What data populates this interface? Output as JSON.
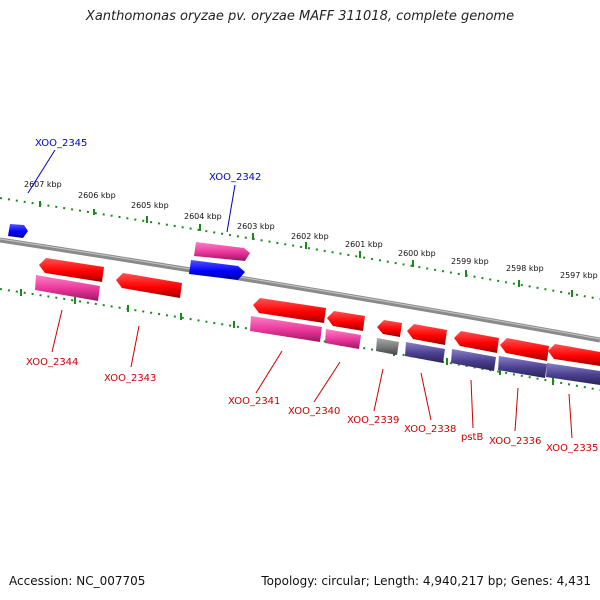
{
  "title": "Xanthomonas oryzae pv. oryzae MAFF 311018, complete genome",
  "footer": {
    "accession": "Accession: NC_007705",
    "summary": "Topology: circular; Length: 4,940,217 bp; Genes: 4,431"
  },
  "scale_labels": [
    "2607 kbp",
    "2606 kbp",
    "2605 kbp",
    "2604 kbp",
    "2603 kbp",
    "2602 kbp",
    "2601 kbp",
    "2600 kbp",
    "2599 kbp",
    "2598 kbp",
    "2597 kbp"
  ],
  "gene_labels_top": [
    "XOO_2345",
    "XOO_2342"
  ],
  "gene_labels_bottom": [
    "XOO_2344",
    "XOO_2343",
    "XOO_2341",
    "XOO_2340",
    "XOO_2339",
    "XOO_2338",
    "pstB",
    "XOO_2336",
    "XOO_2335"
  ],
  "colors": {
    "gene_red": "#ff0000",
    "cds_magenta": "#e8359a",
    "forward_blue": "#0000ff",
    "cds_indigo": "#4a3f8f",
    "gray": "#777777",
    "scale_green": "#1a8a1a",
    "label_blue": "#0000cc",
    "label_red": "#cc0000"
  }
}
